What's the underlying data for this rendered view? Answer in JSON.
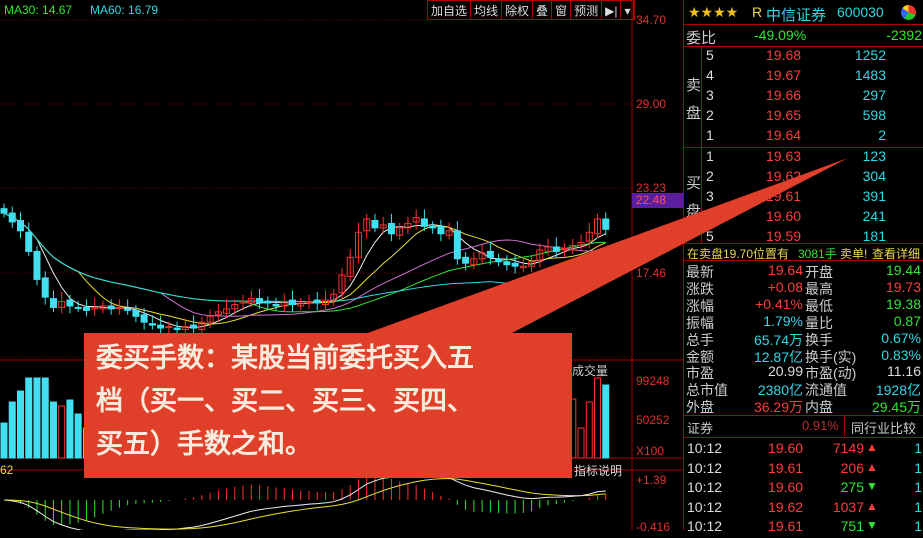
{
  "chart_header": {
    "ma30": "MA30: 14.67",
    "ma60": "MA60: 16.79",
    "ma30_color": "#2ee62e",
    "ma60_color": "#33d6e6"
  },
  "toolbar": [
    "加自选",
    "均线",
    "除权",
    "叠",
    "窗",
    "预测",
    "▶|",
    "▾"
  ],
  "price_axis": [
    "34.70",
    "29.00",
    "23.23",
    "17.46"
  ],
  "current_price_tag": "22.48",
  "volume": {
    "label": "成交量",
    "axis": [
      "99248",
      "50252",
      "X100"
    ],
    "left_label": "62"
  },
  "macd": {
    "help": "指标说明",
    "axis": [
      "+1.39",
      "-0.416"
    ]
  },
  "chart_data": {
    "type": "candlestick",
    "closes": [
      21.6,
      21.0,
      20.4,
      19.0,
      17.1,
      15.9,
      15.2,
      15.6,
      15.3,
      15.2,
      15.0,
      15.2,
      15.3,
      15.1,
      15.2,
      15.0,
      14.6,
      14.2,
      14.0,
      13.8,
      13.9,
      13.7,
      13.9,
      13.8,
      14.2,
      14.6,
      14.9,
      15.1,
      15.4,
      15.6,
      15.8,
      15.5,
      15.5,
      15.3,
      15.6,
      15.4,
      15.5,
      15.6,
      15.5,
      15.7,
      16.1,
      17.4,
      18.6,
      20.3,
      21.2,
      20.6,
      20.8,
      20.2,
      20.6,
      20.9,
      21.3,
      20.7,
      20.6,
      20.2,
      20.4,
      18.5,
      18.2,
      18.5,
      18.9,
      18.6,
      18.3,
      18.1,
      18.0,
      18.0,
      18.3,
      19.1,
      19.3,
      19.0,
      19.2,
      19.4,
      19.6,
      20.3,
      21.2,
      20.5
    ],
    "ylim": [
      11.69,
      34.7
    ]
  },
  "callout": {
    "lines": [
      "委买手数：某股当前委托买入五",
      "档（买一、买二、买三、买四、",
      "买五）手数之和。"
    ],
    "color": "#e0402a"
  },
  "panel": {
    "stars": "★★★★",
    "r": "R",
    "name": "中信证券",
    "code": "600030",
    "weibi": {
      "label": "委比",
      "pct": "-49.09%",
      "diff": "-2392"
    },
    "sell_label": [
      "卖",
      "盘"
    ],
    "buy_label": [
      "买",
      "盘"
    ],
    "sell": [
      {
        "n": "5",
        "p": "19.68",
        "v": "1252"
      },
      {
        "n": "4",
        "p": "19.67",
        "v": "1483"
      },
      {
        "n": "3",
        "p": "19.66",
        "v": "297"
      },
      {
        "n": "2",
        "p": "19.65",
        "v": "598"
      },
      {
        "n": "1",
        "p": "19.64",
        "v": "2"
      }
    ],
    "buy": [
      {
        "n": "1",
        "p": "19.63",
        "v": "123"
      },
      {
        "n": "2",
        "p": "19.62",
        "v": "304"
      },
      {
        "n": "3",
        "p": "19.61",
        "v": "391"
      },
      {
        "n": "4",
        "p": "19.60",
        "v": "241"
      },
      {
        "n": "5",
        "p": "19.59",
        "v": "181"
      }
    ],
    "notice": {
      "a": "在卖盘19.70位置有",
      "b": "3081手",
      "c": "卖单!",
      "d": "查看详细"
    },
    "stats": [
      {
        "l1": "最新",
        "v1": "19.64",
        "c1": "red",
        "l2": "开盘",
        "v2": "19.44",
        "c2": "green"
      },
      {
        "l1": "涨跌",
        "v1": "+0.08",
        "c1": "red",
        "l2": "最高",
        "v2": "19.73",
        "c2": "red"
      },
      {
        "l1": "涨幅",
        "v1": "+0.41%",
        "c1": "red",
        "l2": "最低",
        "v2": "19.38",
        "c2": "green"
      },
      {
        "l1": "振幅",
        "v1": "1.79%",
        "c1": "cyan",
        "l2": "量比",
        "v2": "0.87",
        "c2": "green"
      },
      {
        "l1": "总手",
        "v1": "65.74万",
        "c1": "cyan",
        "l2": "换手",
        "v2": "0.67%",
        "c2": "cyan"
      },
      {
        "l1": "金额",
        "v1": "12.87亿",
        "c1": "cyan",
        "l2": "换手(实)",
        "v2": "0.83%",
        "c2": "cyan"
      },
      {
        "l1": "市盈",
        "v1": "20.99",
        "c1": "white",
        "l2": "市盈(动)",
        "v2": "11.16",
        "c2": "white"
      },
      {
        "l1": "总市值",
        "v1": "2380亿",
        "c1": "cyan",
        "l2": "流通值",
        "v2": "1928亿",
        "c2": "cyan"
      },
      {
        "l1": "外盘",
        "v1": "36.29万",
        "c1": "red",
        "l2": "内盘",
        "v2": "29.45万",
        "c2": "green"
      }
    ],
    "sector": {
      "name": "证券",
      "pct": "0.91%",
      "compare": "同行业比较"
    },
    "trades": [
      {
        "t": "10:12",
        "p": "19.60",
        "v": "7149",
        "dir": "up",
        "n": "1"
      },
      {
        "t": "10:12",
        "p": "19.61",
        "v": "206",
        "dir": "up",
        "n": "1"
      },
      {
        "t": "10:12",
        "p": "19.60",
        "v": "275",
        "dir": "down",
        "n": "1"
      },
      {
        "t": "10:12",
        "p": "19.62",
        "v": "1037",
        "dir": "up",
        "n": "1"
      },
      {
        "t": "10:12",
        "p": "19.61",
        "v": "751",
        "dir": "down",
        "n": "1"
      }
    ]
  }
}
